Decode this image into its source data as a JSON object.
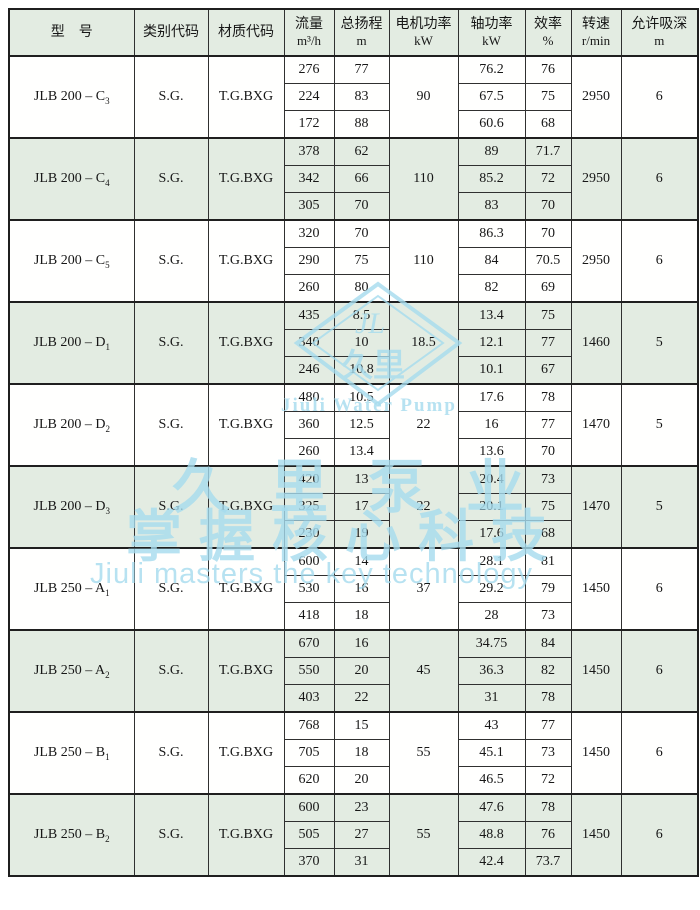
{
  "table": {
    "columns": [
      {
        "label": "型　号",
        "unit": ""
      },
      {
        "label": "类别代码",
        "unit": ""
      },
      {
        "label": "材质代码",
        "unit": ""
      },
      {
        "label": "流量",
        "unit": "m³/h"
      },
      {
        "label": "总扬程",
        "unit": "m"
      },
      {
        "label": "电机功率",
        "unit": "kW"
      },
      {
        "label": "轴功率",
        "unit": "kW"
      },
      {
        "label": "效率",
        "unit": "%"
      },
      {
        "label": "转速",
        "unit": "r/min"
      },
      {
        "label": "允许吸深",
        "unit": "m"
      }
    ],
    "rows": [
      {
        "model_base": "JLB 200 – C",
        "model_sub": "3",
        "category": "S.G.",
        "material": "T.G.BXG",
        "flow": [
          "276",
          "224",
          "172"
        ],
        "head": [
          "77",
          "83",
          "88"
        ],
        "motor_kw": "90",
        "shaft_kw": [
          "76.2",
          "67.5",
          "60.6"
        ],
        "efficiency": [
          "76",
          "75",
          "68"
        ],
        "speed": "2950",
        "suction": "6",
        "shaded": false
      },
      {
        "model_base": "JLB 200 – C",
        "model_sub": "4",
        "category": "S.G.",
        "material": "T.G.BXG",
        "flow": [
          "378",
          "342",
          "305"
        ],
        "head": [
          "62",
          "66",
          "70"
        ],
        "motor_kw": "110",
        "shaft_kw": [
          "89",
          "85.2",
          "83"
        ],
        "efficiency": [
          "71.7",
          "72",
          "70"
        ],
        "speed": "2950",
        "suction": "6",
        "shaded": true
      },
      {
        "model_base": "JLB 200 – C",
        "model_sub": "5",
        "category": "S.G.",
        "material": "T.G.BXG",
        "flow": [
          "320",
          "290",
          "260"
        ],
        "head": [
          "70",
          "75",
          "80"
        ],
        "motor_kw": "110",
        "shaft_kw": [
          "86.3",
          "84",
          "82"
        ],
        "efficiency": [
          "70",
          "70.5",
          "69"
        ],
        "speed": "2950",
        "suction": "6",
        "shaded": false
      },
      {
        "model_base": "JLB 200 – D",
        "model_sub": "1",
        "category": "S.G.",
        "material": "T.G.BXG",
        "flow": [
          "435",
          "340",
          "246"
        ],
        "head": [
          "8.5",
          "10",
          "10.8"
        ],
        "motor_kw": "18.5",
        "shaft_kw": [
          "13.4",
          "12.1",
          "10.1"
        ],
        "efficiency": [
          "75",
          "77",
          "67"
        ],
        "speed": "1460",
        "suction": "5",
        "shaded": true
      },
      {
        "model_base": "JLB 200 – D",
        "model_sub": "2",
        "category": "S.G.",
        "material": "T.G.BXG",
        "flow": [
          "480",
          "360",
          "260"
        ],
        "head": [
          "10.5",
          "12.5",
          "13.4"
        ],
        "motor_kw": "22",
        "shaft_kw": [
          "17.6",
          "16",
          "13.6"
        ],
        "efficiency": [
          "78",
          "77",
          "70"
        ],
        "speed": "1470",
        "suction": "5",
        "shaded": false
      },
      {
        "model_base": "JLB 200 – D",
        "model_sub": "3",
        "category": "S.G.",
        "material": "T.G.BXG",
        "flow": [
          "420",
          "325",
          "230"
        ],
        "head": [
          "13",
          "17",
          "19"
        ],
        "motor_kw": "22",
        "shaft_kw": [
          "20.4",
          "20.1",
          "17.6"
        ],
        "efficiency": [
          "73",
          "75",
          "68"
        ],
        "speed": "1470",
        "suction": "5",
        "shaded": true
      },
      {
        "model_base": "JLB 250 – A",
        "model_sub": "1",
        "category": "S.G.",
        "material": "T.G.BXG",
        "flow": [
          "600",
          "530",
          "418"
        ],
        "head": [
          "14",
          "16",
          "18"
        ],
        "motor_kw": "37",
        "shaft_kw": [
          "28.1",
          "29.2",
          "28"
        ],
        "efficiency": [
          "81",
          "79",
          "73"
        ],
        "speed": "1450",
        "suction": "6",
        "shaded": false
      },
      {
        "model_base": "JLB 250 – A",
        "model_sub": "2",
        "category": "S.G.",
        "material": "T.G.BXG",
        "flow": [
          "670",
          "550",
          "403"
        ],
        "head": [
          "16",
          "20",
          "22"
        ],
        "motor_kw": "45",
        "shaft_kw": [
          "34.75",
          "36.3",
          "31"
        ],
        "efficiency": [
          "84",
          "82",
          "78"
        ],
        "speed": "1450",
        "suction": "6",
        "shaded": true
      },
      {
        "model_base": "JLB 250 – B",
        "model_sub": "1",
        "category": "S.G.",
        "material": "T.G.BXG",
        "flow": [
          "768",
          "705",
          "620"
        ],
        "head": [
          "15",
          "18",
          "20"
        ],
        "motor_kw": "55",
        "shaft_kw": [
          "43",
          "45.1",
          "46.5"
        ],
        "efficiency": [
          "77",
          "73",
          "72"
        ],
        "speed": "1450",
        "suction": "6",
        "shaded": false
      },
      {
        "model_base": "JLB 250 – B",
        "model_sub": "2",
        "category": "S.G.",
        "material": "T.G.BXG",
        "flow": [
          "600",
          "505",
          "370"
        ],
        "head": [
          "23",
          "27",
          "31"
        ],
        "motor_kw": "55",
        "shaft_kw": [
          "47.6",
          "48.8",
          "42.4"
        ],
        "efficiency": [
          "78",
          "76",
          "73.7"
        ],
        "speed": "1450",
        "suction": "6",
        "shaded": true
      }
    ]
  },
  "watermark": {
    "brand_en": "Jiuli Water Pump",
    "brand_cn": "久里泵业",
    "slogan_cn": "掌握核心科技",
    "slogan_en": "Jiuli masters the key technology",
    "logo_script": "JL",
    "logo_chars": "久里",
    "color": "#a6dcee"
  },
  "colors": {
    "shaded_row_bg": "#e3ece2",
    "border": "#303030",
    "watermark_blue": "#a6dcee"
  }
}
